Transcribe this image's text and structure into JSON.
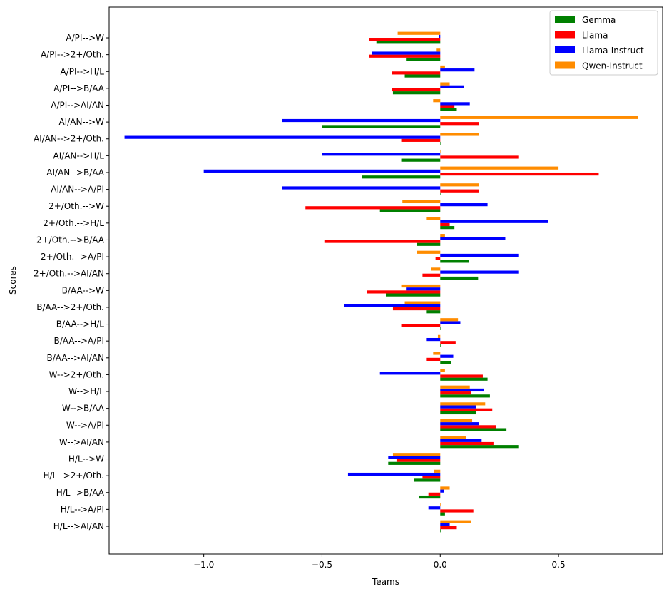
{
  "chart_data": {
    "type": "bar",
    "orientation": "horizontal",
    "xlabel": "Teams",
    "ylabel": "Scores",
    "xlim": [
      -1.4,
      0.94
    ],
    "xticks": [
      -1.0,
      -0.5,
      0.0,
      0.5
    ],
    "xtick_labels": [
      "−1.0",
      "−0.5",
      "0.0",
      "0.5"
    ],
    "grid": false,
    "legend_position": "top-right",
    "categories": [
      "H/L-->AI/AN",
      "H/L-->A/PI",
      "H/L-->B/AA",
      "H/L-->2+/Oth.",
      "H/L-->W",
      "W-->AI/AN",
      "W-->A/PI",
      "W-->B/AA",
      "W-->H/L",
      "W-->2+/Oth.",
      "B/AA-->AI/AN",
      "B/AA-->A/PI",
      "B/AA-->H/L",
      "B/AA-->2+/Oth.",
      "B/AA-->W",
      "2+/Oth.-->AI/AN",
      "2+/Oth.-->A/PI",
      "2+/Oth.-->B/AA",
      "2+/Oth.-->H/L",
      "2+/Oth.-->W",
      "AI/AN-->A/PI",
      "AI/AN-->B/AA",
      "AI/AN-->H/L",
      "AI/AN-->2+/Oth.",
      "AI/AN-->W",
      "A/PI-->AI/AN",
      "A/PI-->B/AA",
      "A/PI-->H/L",
      "A/PI-->2+/Oth.",
      "A/PI-->W"
    ],
    "series": [
      {
        "name": "Gemma",
        "color": "#008000",
        "values": [
          0.005,
          0.02,
          -0.09,
          -0.11,
          -0.22,
          0.33,
          0.28,
          0.15,
          0.21,
          0.2,
          0.045,
          0.005,
          0.0,
          -0.06,
          -0.23,
          0.16,
          0.12,
          -0.1,
          0.06,
          -0.255,
          0.0,
          -0.33,
          -0.165,
          0.0,
          -0.5,
          0.07,
          -0.2,
          -0.15,
          -0.145,
          -0.27
        ]
      },
      {
        "name": "Llama",
        "color": "#ff0000",
        "values": [
          0.07,
          0.14,
          -0.05,
          -0.075,
          -0.185,
          0.225,
          0.235,
          0.22,
          0.13,
          0.18,
          -0.06,
          0.065,
          -0.165,
          -0.2,
          -0.31,
          -0.075,
          -0.02,
          -0.49,
          0.04,
          -0.57,
          0.165,
          0.67,
          0.33,
          -0.165,
          0.165,
          0.06,
          -0.205,
          -0.205,
          -0.3,
          -0.3
        ]
      },
      {
        "name": "Llama-Instruct",
        "color": "#0000ff",
        "values": [
          0.04,
          -0.05,
          0.015,
          -0.39,
          -0.22,
          0.175,
          0.165,
          0.15,
          0.185,
          -0.255,
          0.055,
          -0.06,
          0.085,
          -0.405,
          -0.145,
          0.33,
          0.33,
          0.275,
          0.455,
          0.2,
          -0.67,
          -1.0,
          -0.5,
          -1.335,
          -0.67,
          0.125,
          0.1,
          0.145,
          -0.29,
          -0.005
        ]
      },
      {
        "name": "Qwen-Instruct",
        "color": "#ff8c00",
        "values": [
          0.13,
          0.005,
          0.04,
          -0.025,
          -0.2,
          0.11,
          0.135,
          0.19,
          0.125,
          0.02,
          -0.03,
          -0.01,
          0.075,
          -0.15,
          -0.165,
          -0.04,
          -0.1,
          0.02,
          -0.06,
          -0.16,
          0.165,
          0.5,
          0.0,
          0.165,
          0.835,
          -0.03,
          0.04,
          0.02,
          -0.015,
          -0.18
        ]
      }
    ]
  }
}
